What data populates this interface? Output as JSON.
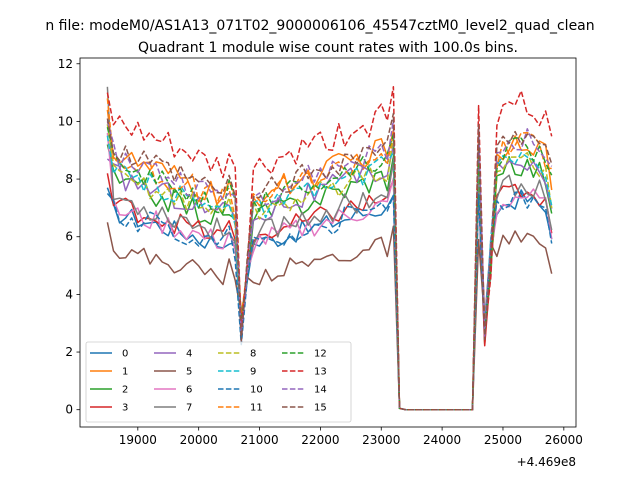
{
  "chart_data": {
    "type": "line",
    "suptitle": "n file: modeM0/AS1A13_071T02_9000006106_45547cztM0_level2_quad_clean",
    "title": "Quadrant 1 module wise count rates with 100.0s bins.",
    "xlabel": "",
    "ylabel": "",
    "x_offset_label": "+4.469e8",
    "xlim": [
      18050,
      26200
    ],
    "ylim": [
      -0.6,
      12.2
    ],
    "xticks": [
      19000,
      20000,
      21000,
      22000,
      23000,
      24000,
      25000,
      26000
    ],
    "xtick_labels": [
      "19000",
      "20000",
      "21000",
      "22000",
      "23000",
      "24000",
      "25000",
      "26000"
    ],
    "yticks": [
      0,
      2,
      4,
      6,
      8,
      10,
      12
    ],
    "ytick_labels": [
      "0",
      "2",
      "4",
      "6",
      "8",
      "10",
      "12"
    ],
    "grid": false,
    "legend_position": "lower-left",
    "legend_columns": 4,
    "series": [
      {
        "name": "0",
        "color": "#1f77b4",
        "dash": "solid",
        "base": 6.9,
        "mult": 0.82,
        "start": 7.7,
        "amp": 0.35
      },
      {
        "name": "1",
        "color": "#ff7f0e",
        "dash": "solid",
        "base": 8.9,
        "mult": 0.95,
        "start": 10.4,
        "amp": 0.45
      },
      {
        "name": "2",
        "color": "#2ca02c",
        "dash": "solid",
        "base": 8.0,
        "mult": 0.92,
        "start": 9.2,
        "amp": 0.45
      },
      {
        "name": "3",
        "color": "#d62728",
        "dash": "solid",
        "base": 7.2,
        "mult": 0.86,
        "start": 8.2,
        "amp": 0.4
      },
      {
        "name": "4",
        "color": "#9467bd",
        "dash": "solid",
        "base": 8.2,
        "mult": 0.93,
        "start": 8.7,
        "amp": 0.45
      },
      {
        "name": "5",
        "color": "#8c564b",
        "dash": "solid",
        "base": 5.6,
        "mult": 0.7,
        "start": 6.5,
        "amp": 0.35
      },
      {
        "name": "6",
        "color": "#e377c2",
        "dash": "solid",
        "base": 7.0,
        "mult": 0.85,
        "start": 9.6,
        "amp": 0.4
      },
      {
        "name": "7",
        "color": "#7f7f7f",
        "dash": "solid",
        "base": 7.4,
        "mult": 0.88,
        "start": 11.2,
        "amp": 0.45
      },
      {
        "name": "8",
        "color": "#bcbd22",
        "dash": "dashed",
        "base": 8.2,
        "mult": 0.92,
        "start": 9.9,
        "amp": 0.4
      },
      {
        "name": "9",
        "color": "#17becf",
        "dash": "dashed",
        "base": 8.3,
        "mult": 0.93,
        "start": 9.5,
        "amp": 0.4
      },
      {
        "name": "10",
        "color": "#1f77b4",
        "dash": "dashed",
        "base": 6.9,
        "mult": 0.8,
        "start": 7.5,
        "amp": 0.45
      },
      {
        "name": "11",
        "color": "#ff7f0e",
        "dash": "dashed",
        "base": 8.8,
        "mult": 0.95,
        "start": 10.8,
        "amp": 0.45
      },
      {
        "name": "12",
        "color": "#2ca02c",
        "dash": "dashed",
        "base": 8.6,
        "mult": 0.95,
        "start": 9.8,
        "amp": 0.4
      },
      {
        "name": "13",
        "color": "#d62728",
        "dash": "dashed",
        "base": 10.0,
        "mult": 1.0,
        "start": 11.0,
        "amp": 0.5
      },
      {
        "name": "14",
        "color": "#9467bd",
        "dash": "dashed",
        "base": 8.9,
        "mult": 0.96,
        "start": 10.0,
        "amp": 0.45
      },
      {
        "name": "15",
        "color": "#8c564b",
        "dash": "dashed",
        "base": 9.0,
        "mult": 0.96,
        "start": 10.1,
        "amp": 0.45
      }
    ]
  }
}
